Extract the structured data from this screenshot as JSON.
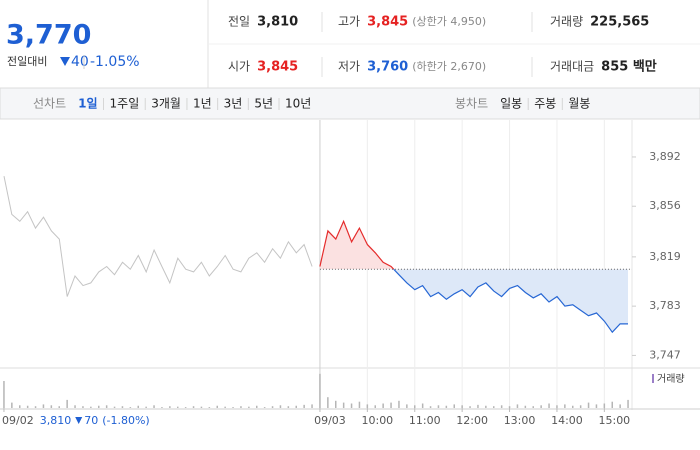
{
  "header": {
    "price": "3,770",
    "change_label": "전일대비",
    "change": "40",
    "change_rate": "-1.05%"
  },
  "info": [
    {
      "label": "전일",
      "value": "3,810",
      "color": "#222222"
    },
    {
      "label": "고가",
      "value": "3,845",
      "note": "(상한가 4,950)",
      "color": "#e52222"
    },
    {
      "label": "거래량",
      "value": "225,565",
      "color": "#222222"
    },
    {
      "label": "시가",
      "value": "3,845",
      "color": "#e52222"
    },
    {
      "label": "저가",
      "value": "3,760",
      "note": "(하한가 2,670)",
      "color": "#1e5fd3"
    },
    {
      "label": "거래대금",
      "value": "855 백만",
      "color": "#222222"
    }
  ],
  "tabs": {
    "line_label": "선차트",
    "line_periods": [
      "1일",
      "1주일",
      "3개월",
      "1년",
      "3년",
      "5년",
      "10년"
    ],
    "active": 0,
    "candle_label": "봉차트",
    "candle_periods": [
      "일봉",
      "주봉",
      "월봉"
    ]
  },
  "chart_data": {
    "type": "line",
    "categories": [
      "09/02",
      null,
      null,
      null,
      null,
      null,
      null,
      null,
      null,
      null,
      null,
      null,
      null,
      null,
      null,
      null,
      null,
      null,
      null,
      null,
      null,
      null,
      null,
      null,
      null,
      null,
      null,
      null,
      null,
      null,
      null,
      null,
      null,
      null,
      null,
      null,
      null,
      null,
      null,
      null,
      "09/03",
      null,
      null,
      null,
      null,
      null,
      "10:00",
      null,
      null,
      null,
      null,
      null,
      "11:00",
      null,
      null,
      null,
      null,
      null,
      "12:00",
      null,
      null,
      null,
      null,
      null,
      "13:00",
      null,
      null,
      null,
      null,
      null,
      "14:00",
      null,
      null,
      null,
      null,
      null,
      "15:00",
      null,
      null,
      null
    ],
    "series": [
      {
        "color": "#c4c4c4",
        "values": [
          3878,
          3850,
          3845,
          3852,
          3840,
          3848,
          3838,
          3832,
          3790,
          3805,
          3798,
          3800,
          3808,
          3812,
          3806,
          3815,
          3810,
          3820,
          3808,
          3824,
          3812,
          3800,
          3818,
          3810,
          3808,
          3815,
          3805,
          3812,
          3820,
          3810,
          3808,
          3818,
          3822,
          3815,
          3825,
          3818,
          3830,
          3822,
          3828,
          3812,
          null,
          null,
          null,
          null,
          null,
          null,
          null,
          null,
          null,
          null,
          null,
          null,
          null,
          null,
          null,
          null,
          null,
          null,
          null,
          null,
          null,
          null,
          null,
          null,
          null,
          null,
          null,
          null,
          null,
          null,
          null,
          null,
          null,
          null,
          null,
          null,
          null,
          null,
          null,
          null
        ]
      },
      {
        "color_up": "#e52c2c",
        "color_down": "#2767d4",
        "fill_up": "#fbe1e1",
        "fill_down": "#dde8f8",
        "values": [
          null,
          null,
          null,
          null,
          null,
          null,
          null,
          null,
          null,
          null,
          null,
          null,
          null,
          null,
          null,
          null,
          null,
          null,
          null,
          null,
          null,
          null,
          null,
          null,
          null,
          null,
          null,
          null,
          null,
          null,
          null,
          null,
          null,
          null,
          null,
          null,
          null,
          null,
          null,
          null,
          3812,
          3838,
          3832,
          3845,
          3830,
          3840,
          3828,
          3822,
          3815,
          3812,
          3806,
          3800,
          3795,
          3798,
          3790,
          3793,
          3788,
          3792,
          3795,
          3790,
          3797,
          3800,
          3794,
          3790,
          3796,
          3798,
          3793,
          3789,
          3792,
          3786,
          3790,
          3783,
          3784,
          3780,
          3776,
          3778,
          3772,
          3764,
          3770,
          3770
        ]
      }
    ],
    "baseline": 3810,
    "ylim": [
      3740,
      3919
    ],
    "yticks": [
      {
        "value": 3892,
        "label": "3,892"
      },
      {
        "value": 3856,
        "label": "3,856"
      },
      {
        "value": 3819,
        "label": "3,819"
      },
      {
        "value": 3783,
        "label": "3,783"
      },
      {
        "value": 3747,
        "label": "3,747"
      }
    ],
    "volume": {
      "name": "거래량",
      "color": "#b5b5b5",
      "legend_color": "#9b7fc8",
      "ylim": [
        0,
        40000
      ],
      "values": [
        30000,
        6000,
        3000,
        2500,
        2000,
        4000,
        3000,
        2000,
        9000,
        3000,
        2000,
        1500,
        2500,
        3000,
        1500,
        2000,
        1000,
        2500,
        1500,
        3000,
        1000,
        2000,
        1500,
        1000,
        2000,
        1500,
        1000,
        2500,
        1500,
        1000,
        2000,
        1500,
        2500,
        1000,
        2000,
        3000,
        2000,
        2500,
        3500,
        4000,
        38000,
        12000,
        8000,
        6000,
        5000,
        7000,
        4000,
        3000,
        5000,
        6000,
        8000,
        4000,
        3000,
        5000,
        2000,
        3000,
        2500,
        4000,
        3000,
        2000,
        3500,
        2500,
        2000,
        3000,
        2000,
        4000,
        2500,
        2000,
        3000,
        5000,
        3000,
        4000,
        2500,
        3000,
        6000,
        4000,
        5000,
        7000,
        4000,
        9000
      ]
    },
    "prev_summary": {
      "close": "3,810",
      "change": "70",
      "rate": "(-1.80%)"
    }
  }
}
